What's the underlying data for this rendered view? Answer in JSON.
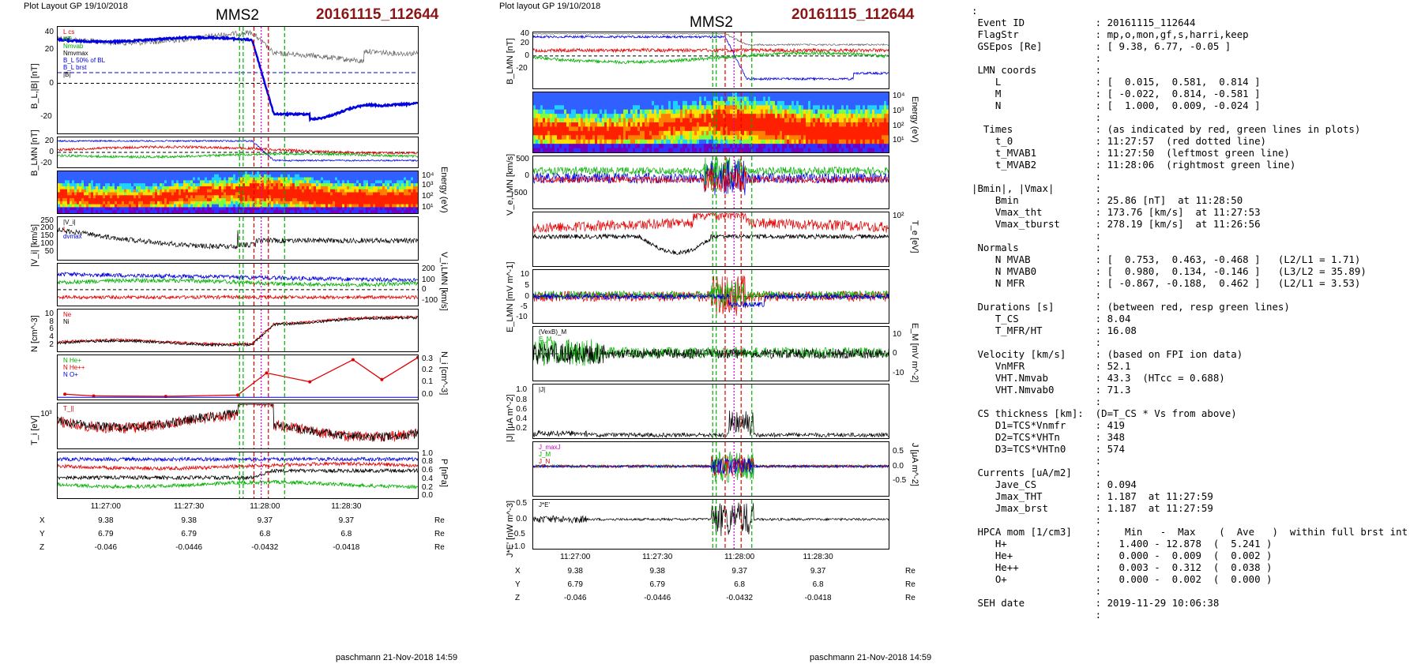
{
  "left": {
    "header_small": "Plot Layout GP 19/10/2018",
    "title": "MMS2",
    "event": "20161115_112644",
    "footer": "paschmann 21-Nov-2018 14:59",
    "ylabels": [
      "B_L,|B| [nT]",
      "B_LMN [nT]",
      "Energy (eV)",
      "|V_i| [km/s]",
      "V_i,LMN [km/s]",
      "N [cm^-3]",
      "N_i [cm^-3]",
      "T_i [eV]",
      "P [nPa]"
    ],
    "legend_b": [
      "L cs",
      "HT",
      "Nmvab",
      "Nmvmax",
      "B_L 50% of BL",
      "B_L brst",
      "|B|"
    ],
    "legend_n": [
      "Ne",
      "Ni"
    ],
    "legend_ni": [
      "N He+",
      "N He++",
      "N O+"
    ],
    "legend_v": [
      "|V_i|",
      "L",
      "dvmax"
    ],
    "legend_ti": [
      "T_||"
    ]
  },
  "middle": {
    "header_small": "Plot layout GP 19/10/2018",
    "title": "MMS2",
    "event": "20161115_112644",
    "footer": "paschmann 21-Nov-2018 14:59",
    "ylabels": [
      "B_LMN [nT]",
      "Energy (eV)",
      "V_e,LMN [km/s]",
      "T_e [eV]",
      "E_LMN [mV m^-1]",
      "E_M [mV m^-2]",
      "|J| [μA m^-2]",
      "J [μA m^-2]",
      "J*E' [nW m^-3]"
    ],
    "legend_j": [
      "|J|"
    ],
    "legend_je": [
      "J*E'"
    ],
    "legend_e": [
      "(VexB)_M",
      "E_M"
    ],
    "legend_jmax": [
      "J_maxJ",
      "J_M",
      "J_N"
    ]
  },
  "xaxis": {
    "ticks": [
      "11:27:00",
      "11:27:30",
      "11:28:00",
      "11:28:30"
    ],
    "rows": [
      {
        "label": "X",
        "values": [
          "9.38",
          "9.38",
          "9.37",
          "9.37"
        ],
        "unit": "Re"
      },
      {
        "label": "Y",
        "values": [
          "6.79",
          "6.79",
          "6.8",
          "6.8"
        ],
        "unit": "Re"
      },
      {
        "label": "Z",
        "values": [
          "-0.046",
          "-0.0446",
          "-0.0432",
          "-0.0418"
        ],
        "unit": "Re"
      }
    ]
  },
  "info_text": ":\n Event ID            : 20161115_112644\n FlagStr             : mp,o,mon,gf,s,harri,keep\n GSEpos [Re]         : [ 9.38, 6.77, -0.05 ]\n                     :\n LMN coords          :\n    L                : [  0.015,  0.581,  0.814 ]\n    M                : [ -0.022,  0.814, -0.581 ]\n    N                : [  1.000,  0.009, -0.024 ]\n                     :\n  Times              : (as indicated by red, green lines in plots)\n    t_0              : 11:27:57  (red dotted line)\n    t_MVAB1          : 11:27:50  (leftmost green line)\n    t_MVAB2          : 11:28:06  (rightmost green line)\n                     :\n|Bmin|, |Vmax|       :\n    Bmin             : 25.86 [nT]  at 11:28:50\n    Vmax_tht         : 173.76 [km/s]  at 11:27:53\n    Vmax_tburst      : 278.19 [km/s]  at 11:26:56\n                     :\n Normals             :\n    N MVAB           : [  0.753,  0.463, -0.468 ]   (L2/L1 = 1.71)\n    N MVAB0          : [  0.980,  0.134, -0.146 ]   (L3/L2 = 35.89)\n    N MFR            : [ -0.867, -0.188,  0.462 ]   (L2/L1 = 3.53)\n                     :\n Durations [s]       : (between red, resp green lines)\n    T_CS             : 8.04\n    T_MFR/HT         : 16.08\n                     :\n Velocity [km/s]     : (based on FPI ion data)\n    VnMFR            : 52.1\n    VHT.Nmvab        : 43.3  (HTcc = 0.688)\n    VHT.Nmvab0       : 71.3\n                     :\n CS thickness [km]:  (D=T_CS * Vs from above)\n    D1=TCS*Vnmfr     : 419\n    D2=TCS*VHTn      : 348\n    D3=TCS*VHTn0     : 574\n                     :\n Currents [uA/m2]    :\n    Jave_CS          : 0.094\n    Jmax_THT         : 1.187  at 11:27:59\n    Jmax_brst        : 1.187  at 11:27:59\n                     :\n HPCA mom [1/cm3]    :    Min   -  Max    (  Ave   )  within full brst int\n    H+               :   1.400 - 12.878  (  5.241 )\n    He+              :   0.000 -  0.009  (  0.002 )\n    He++             :   0.003 -  0.312  (  0.038 )\n    O+               :   0.000 -  0.002  (  0.000 )\n                     :\n SEH date            : 2019-11-29 10:06:38\n                     :",
  "colors": {
    "event": "#8b1515",
    "red": "#e00000",
    "green": "#00b000",
    "blue": "#0000e0",
    "black": "#000000",
    "magenta": "#d000d0"
  },
  "chart_data": [
    {
      "type": "line",
      "title": "MMS2 20161115_112644",
      "panels": [
        "B_L,|B|",
        "B_LMN",
        "ion energy spectrogram",
        "|V_i|",
        "V_i,LMN",
        "N",
        "N_i",
        "T_i",
        "P"
      ]
    },
    {
      "type": "line",
      "title": "MMS2 20161115_112644",
      "panels": [
        "B_LMN",
        "electron energy spectrogram",
        "V_e,LMN",
        "T_e",
        "E_LMN",
        "E_M",
        "|J|",
        "J",
        "J*E'"
      ]
    }
  ]
}
